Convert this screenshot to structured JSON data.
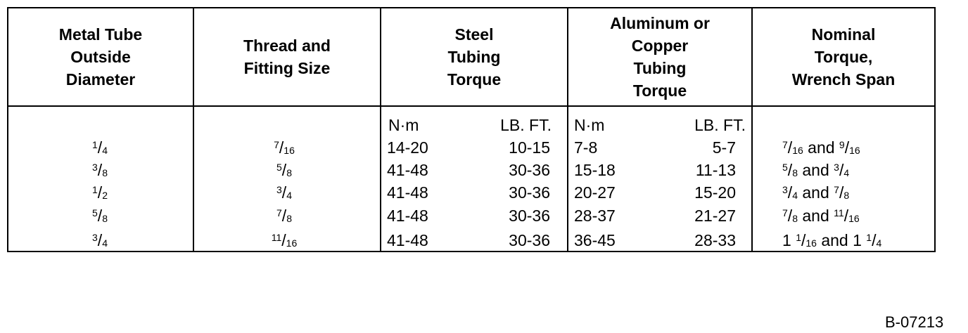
{
  "table": {
    "header": [
      [
        "Metal Tube",
        "Outside",
        "Diameter"
      ],
      [
        "Thread and",
        "Fitting Size"
      ],
      [
        "Steel",
        "Tubing",
        "Torque"
      ],
      [
        "Aluminum or",
        "Copper",
        "Tubing",
        "Torque"
      ],
      [
        "Nominal",
        "Torque,",
        "Wrench Span"
      ]
    ],
    "units": [
      "N·m",
      "LB. FT.",
      "N·m",
      "LB. FT."
    ],
    "rows": [
      [
        "1/4",
        "7/16",
        "14-20",
        "10-15",
        "7-8",
        "5-7",
        "7/16 and 9/16"
      ],
      [
        "3/8",
        "5/8",
        "41-48",
        "30-36",
        "15-18",
        "11-13",
        "5/8 and 3/4"
      ],
      [
        "1/2",
        "3/4",
        "41-48",
        "30-36",
        "20-27",
        "15-20",
        "3/4 and 7/8"
      ],
      [
        "5/8",
        "7/8",
        "41-48",
        "30-36",
        "28-37",
        "21-27",
        "7/8 and 11/16"
      ],
      [
        "3/4",
        "11/16",
        "41-48",
        "30-36",
        "36-45",
        "28-33",
        "1 1/16 and 1 1/4"
      ]
    ]
  },
  "figure_id": "B-07213"
}
